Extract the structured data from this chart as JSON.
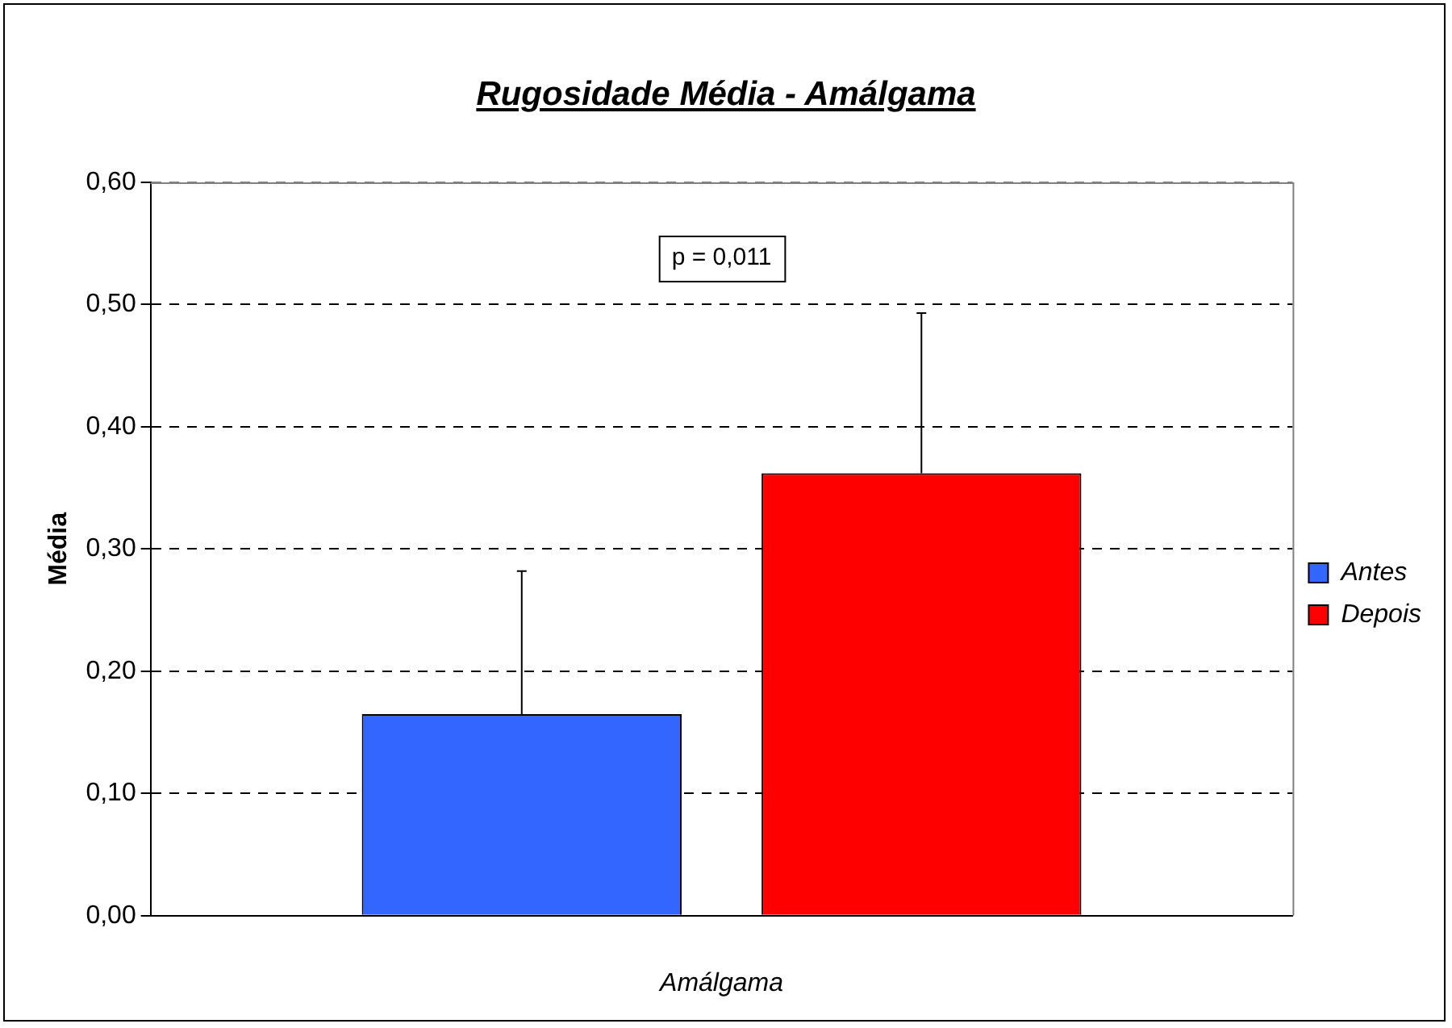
{
  "chart_data": {
    "type": "bar",
    "title": "Rugosidade Média - Amálgama",
    "xlabel": "Amálgama",
    "ylabel": "Média",
    "categories": [
      null
    ],
    "series": [
      {
        "name": "Antes",
        "color": "#3366ff",
        "values": [
          0.165
        ],
        "errors": [
          [
            0.165,
            0.282
          ]
        ]
      },
      {
        "name": "Depois",
        "color": "#ff0000",
        "values": [
          0.362
        ],
        "errors": [
          [
            0.362,
            0.493
          ]
        ]
      }
    ],
    "ylim": [
      0,
      0.6
    ],
    "yticks": [
      {
        "value": 0,
        "label": "0,00"
      },
      {
        "value": 0.1,
        "label": "0,10"
      },
      {
        "value": 0.2,
        "label": "0,20"
      },
      {
        "value": 0.3,
        "label": "0,30"
      },
      {
        "value": 0.4,
        "label": "0,40"
      },
      {
        "value": 0.5,
        "label": "0,50"
      },
      {
        "value": 0.6,
        "label": "0,60"
      }
    ],
    "grid": "y",
    "line_style": "dashed",
    "legend": "right",
    "annotations": [
      "p = 0,011"
    ]
  }
}
